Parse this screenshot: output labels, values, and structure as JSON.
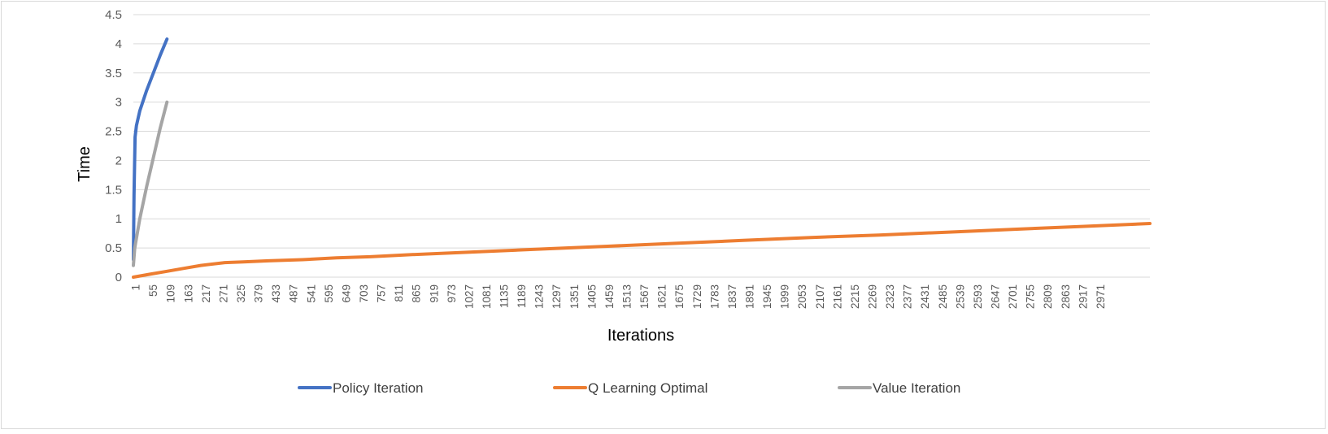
{
  "chart_data": {
    "type": "line",
    "title": "",
    "xlabel": "Iterations",
    "ylabel": "Time",
    "xlim": [
      1,
      3000
    ],
    "ylim": [
      0,
      4.5
    ],
    "y_ticks": [
      "0",
      "0.5",
      "1",
      "1.5",
      "2",
      "2.5",
      "3",
      "3.5",
      "4",
      "4.5"
    ],
    "x_tick_labels": [
      "1",
      "55",
      "109",
      "163",
      "217",
      "271",
      "325",
      "379",
      "433",
      "487",
      "541",
      "595",
      "649",
      "703",
      "757",
      "811",
      "865",
      "919",
      "973",
      "1027",
      "1081",
      "1135",
      "1189",
      "1243",
      "1297",
      "1351",
      "1405",
      "1459",
      "1513",
      "1567",
      "1621",
      "1675",
      "1729",
      "1783",
      "1837",
      "1891",
      "1945",
      "1999",
      "2053",
      "2107",
      "2161",
      "2215",
      "2269",
      "2323",
      "2377",
      "2431",
      "2485",
      "2539",
      "2593",
      "2647",
      "2701",
      "2755",
      "2809",
      "2863",
      "2917",
      "2971"
    ],
    "grid": true,
    "legend_position": "bottom",
    "series": [
      {
        "name": "Policy Iteration",
        "color": "#4472C4",
        "points": [
          [
            1,
            0.3
          ],
          [
            3,
            1.4
          ],
          [
            6,
            2.4
          ],
          [
            10,
            2.6
          ],
          [
            20,
            2.85
          ],
          [
            40,
            3.2
          ],
          [
            60,
            3.5
          ],
          [
            80,
            3.8
          ],
          [
            100,
            4.08
          ]
        ]
      },
      {
        "name": "Q Learning Optimal",
        "color": "#ED7D31",
        "points": [
          [
            1,
            0.0
          ],
          [
            50,
            0.05
          ],
          [
            100,
            0.1
          ],
          [
            150,
            0.15
          ],
          [
            200,
            0.2
          ],
          [
            271,
            0.25
          ],
          [
            325,
            0.26
          ],
          [
            400,
            0.28
          ],
          [
            500,
            0.3
          ],
          [
            600,
            0.33
          ],
          [
            700,
            0.35
          ],
          [
            800,
            0.38
          ],
          [
            1000,
            0.43
          ],
          [
            1200,
            0.48
          ],
          [
            1400,
            0.53
          ],
          [
            1600,
            0.58
          ],
          [
            1800,
            0.63
          ],
          [
            2000,
            0.68
          ],
          [
            2200,
            0.72
          ],
          [
            2400,
            0.77
          ],
          [
            2600,
            0.82
          ],
          [
            2800,
            0.87
          ],
          [
            3000,
            0.92
          ]
        ]
      },
      {
        "name": "Value Iteration",
        "color": "#A5A5A5",
        "points": [
          [
            1,
            0.2
          ],
          [
            5,
            0.5
          ],
          [
            20,
            1.0
          ],
          [
            40,
            1.55
          ],
          [
            60,
            2.05
          ],
          [
            80,
            2.55
          ],
          [
            100,
            3.0
          ]
        ]
      }
    ]
  }
}
